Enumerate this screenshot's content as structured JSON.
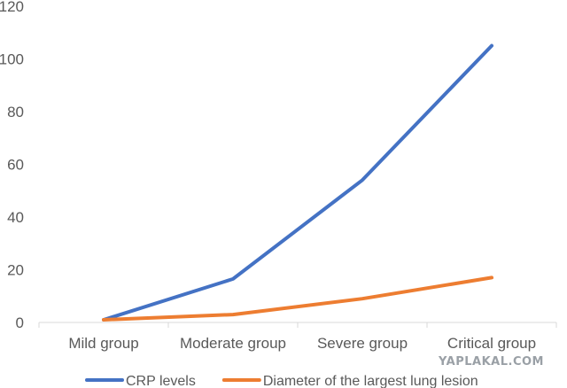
{
  "chart_data": {
    "type": "line",
    "title": "",
    "xlabel": "",
    "ylabel": "",
    "categories": [
      "Mild group",
      "Moderate group",
      "Severe group",
      "Critical group"
    ],
    "ylim": [
      0,
      120
    ],
    "yticks": [
      0,
      20,
      40,
      60,
      80,
      100,
      120
    ],
    "grid": false,
    "legend_position": "bottom",
    "series": [
      {
        "name": "CRP levels",
        "color": "#4472C4",
        "values": [
          1,
          16.5,
          54,
          105
        ]
      },
      {
        "name": "Diameter of the largest lung lesion",
        "color": "#ED7D31",
        "values": [
          1,
          3,
          9,
          17
        ]
      }
    ]
  },
  "watermark": "YAPLAKAL.COM"
}
